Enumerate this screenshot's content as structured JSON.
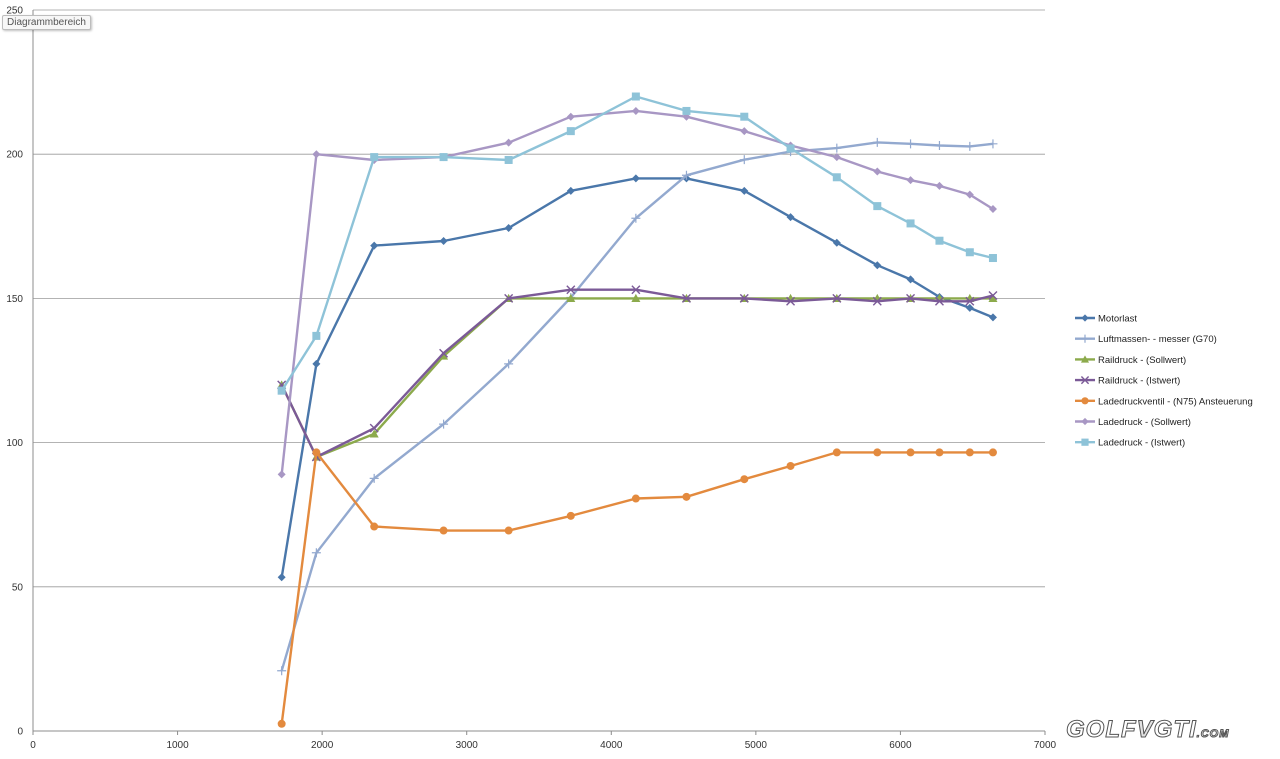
{
  "chart_area_tag": "Diagrammbereich",
  "watermark": {
    "golf": "GOLF",
    "mid": "V",
    "gti": "GTI",
    "com": ".COM"
  },
  "chart_data": {
    "type": "line",
    "title": "",
    "xlabel": "",
    "ylabel": "",
    "xlim": [
      0,
      7000
    ],
    "ylim": [
      0,
      250
    ],
    "xticks": [
      0,
      1000,
      2000,
      3000,
      4000,
      5000,
      6000,
      7000
    ],
    "yticks": [
      0,
      50,
      100,
      150,
      200,
      250
    ],
    "xtick_labels": [
      "0",
      "1000",
      "2000",
      "3000",
      "4000",
      "5000",
      "6000",
      "7000"
    ],
    "ytick_labels": [
      "0",
      "50",
      "100",
      "150",
      "200",
      "250"
    ],
    "grid": "horizontal",
    "legend_position": "right",
    "series": [
      {
        "name": "Motorlast",
        "color": "#4a77aa",
        "marker": "diamond",
        "x": [
          1720,
          1960,
          2360,
          2840,
          3290,
          3720,
          4170,
          4520,
          4920,
          5240,
          5560,
          5840,
          6070,
          6270,
          6480,
          6640
        ],
        "y": [
          53.3,
          127.3,
          168.3,
          169.9,
          174.4,
          187.3,
          191.6,
          191.6,
          187.3,
          178.2,
          169.3,
          161.5,
          156.6,
          150.5,
          146.7,
          143.4
        ]
      },
      {
        "name": "Luftmassen- - messer (G70)",
        "color": "#93a9cf",
        "marker": "plus",
        "x": [
          1720,
          1960,
          2360,
          2840,
          3290,
          3720,
          4170,
          4520,
          4920,
          5240,
          5560,
          5840,
          6070,
          6270,
          6480,
          6640
        ],
        "y": [
          20.9,
          61.8,
          87.6,
          106.4,
          127.3,
          150.3,
          177.8,
          192.7,
          198.1,
          200.9,
          202.1,
          204.1,
          203.6,
          203.0,
          202.7,
          203.6
        ]
      },
      {
        "name": "Raildruck - (Sollwert)",
        "color": "#8caa4c",
        "marker": "triangle",
        "x": [
          1720,
          1960,
          2360,
          2840,
          3290,
          3720,
          4170,
          4520,
          4920,
          5240,
          5560,
          5840,
          6070,
          6270,
          6480,
          6640
        ],
        "y": [
          120.0,
          95.0,
          103.0,
          130.0,
          150.0,
          150.0,
          150.0,
          150.0,
          150.0,
          150.0,
          150.0,
          150.0,
          150.0,
          150.0,
          150.0,
          150.0
        ]
      },
      {
        "name": "Raildruck - (Istwert)",
        "color": "#7b5a97",
        "marker": "x",
        "x": [
          1720,
          1960,
          2360,
          2840,
          3290,
          3720,
          4170,
          4520,
          4920,
          5240,
          5560,
          5840,
          6070,
          6270,
          6480,
          6640
        ],
        "y": [
          120.0,
          95.0,
          105.0,
          131.0,
          150.0,
          153.0,
          153.0,
          150.0,
          150.0,
          149.0,
          150.0,
          149.0,
          150.0,
          149.0,
          149.0,
          151.0
        ]
      },
      {
        "name": "Ladedruckventil - (N75) Ansteuerung",
        "color": "#e38a3e",
        "marker": "circle",
        "x": [
          1720,
          1960,
          2360,
          2840,
          3290,
          3720,
          4170,
          4520,
          4920,
          5240,
          5560,
          5840,
          6070,
          6270,
          6480,
          6640
        ],
        "y": [
          2.5,
          96.6,
          70.9,
          69.5,
          69.5,
          74.6,
          80.6,
          81.2,
          87.3,
          91.9,
          96.6,
          96.6,
          96.6,
          96.6,
          96.6,
          96.6
        ]
      },
      {
        "name": "Ladedruck - (Sollwert)",
        "color": "#a897c4",
        "marker": "diamond",
        "x": [
          1720,
          1960,
          2360,
          2840,
          3290,
          3720,
          4170,
          4520,
          4920,
          5240,
          5560,
          5840,
          6070,
          6270,
          6480,
          6640
        ],
        "y": [
          89.0,
          200.0,
          198.0,
          199.0,
          204.0,
          213.0,
          215.0,
          213.0,
          208.0,
          203.0,
          199.0,
          194.0,
          191.0,
          189.0,
          186.0,
          181.0
        ]
      },
      {
        "name": "Ladedruck - (Istwert)",
        "color": "#8ec3d8",
        "marker": "square",
        "x": [
          1720,
          1960,
          2360,
          2840,
          3290,
          3720,
          4170,
          4520,
          4920,
          5240,
          5560,
          5840,
          6070,
          6270,
          6480,
          6640
        ],
        "y": [
          118.0,
          137.0,
          199.0,
          199.0,
          198.0,
          208.0,
          220.0,
          215.0,
          213.0,
          202.0,
          192.0,
          182.0,
          176.0,
          170.0,
          166.0,
          164.0
        ]
      }
    ]
  }
}
